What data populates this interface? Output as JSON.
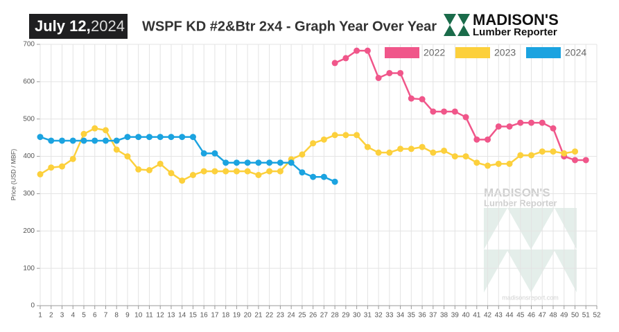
{
  "header": {
    "date": "July 12,",
    "year": "2024",
    "logo_name": "MADISON'S",
    "logo_sub": "Lumber Reporter"
  },
  "watermark": {
    "name": "MADISON'S",
    "sub": "Lumber Reporter",
    "url": "madisonsreport.com"
  },
  "chart_data": {
    "type": "line",
    "title": "WSPF KD #2&Btr 2x4 - Graph Year Over Year",
    "y_label": "Price (USD / MBF)",
    "x": [
      1,
      2,
      3,
      4,
      5,
      6,
      7,
      8,
      9,
      10,
      11,
      12,
      13,
      14,
      15,
      16,
      17,
      18,
      19,
      20,
      21,
      22,
      23,
      24,
      25,
      26,
      27,
      28,
      29,
      30,
      31,
      32,
      33,
      34,
      35,
      36,
      37,
      38,
      39,
      40,
      41,
      42,
      43,
      44,
      45,
      46,
      47,
      48,
      49,
      50,
      51,
      52
    ],
    "xlim": [
      1,
      52
    ],
    "xticks": [
      1,
      2,
      3,
      4,
      5,
      6,
      7,
      8,
      9,
      10,
      11,
      12,
      13,
      14,
      15,
      16,
      17,
      18,
      19,
      20,
      21,
      22,
      23,
      24,
      25,
      26,
      27,
      28,
      29,
      30,
      31,
      32,
      33,
      34,
      35,
      36,
      37,
      38,
      39,
      40,
      41,
      42,
      43,
      44,
      45,
      46,
      47,
      48,
      49,
      50,
      51,
      52
    ],
    "ylim": [
      0,
      700
    ],
    "yticks": [
      0,
      100,
      200,
      300,
      400,
      500,
      600,
      700
    ],
    "grid": true,
    "legend": "top-right",
    "series": [
      {
        "name": "2022",
        "color": "#f0568a",
        "values": [
          null,
          null,
          null,
          null,
          null,
          null,
          null,
          null,
          null,
          null,
          null,
          null,
          null,
          null,
          null,
          null,
          null,
          null,
          null,
          null,
          null,
          null,
          null,
          null,
          null,
          null,
          null,
          650,
          663,
          683,
          683,
          610,
          623,
          623,
          555,
          553,
          520,
          520,
          520,
          505,
          445,
          445,
          480,
          480,
          490,
          490,
          490,
          475,
          400,
          390,
          390,
          null
        ]
      },
      {
        "name": "2023",
        "color": "#fcd03c",
        "values": [
          352,
          370,
          373,
          393,
          460,
          475,
          470,
          418,
          400,
          365,
          363,
          380,
          355,
          335,
          350,
          360,
          360,
          360,
          360,
          360,
          350,
          360,
          360,
          392,
          405,
          435,
          445,
          457,
          457,
          457,
          425,
          410,
          410,
          420,
          420,
          425,
          410,
          415,
          400,
          400,
          383,
          375,
          380,
          380,
          403,
          403,
          413,
          413,
          408,
          413,
          null,
          null
        ]
      },
      {
        "name": "2024",
        "color": "#1ba3e0",
        "values": [
          452,
          442,
          442,
          442,
          442,
          442,
          442,
          442,
          452,
          452,
          452,
          452,
          452,
          452,
          452,
          408,
          408,
          383,
          383,
          383,
          383,
          383,
          383,
          383,
          357,
          345,
          345,
          332,
          null,
          null,
          null,
          null,
          null,
          null,
          null,
          null,
          null,
          null,
          null,
          null,
          null,
          null,
          null,
          null,
          null,
          null,
          null,
          null,
          null,
          null,
          null,
          null
        ]
      }
    ]
  }
}
